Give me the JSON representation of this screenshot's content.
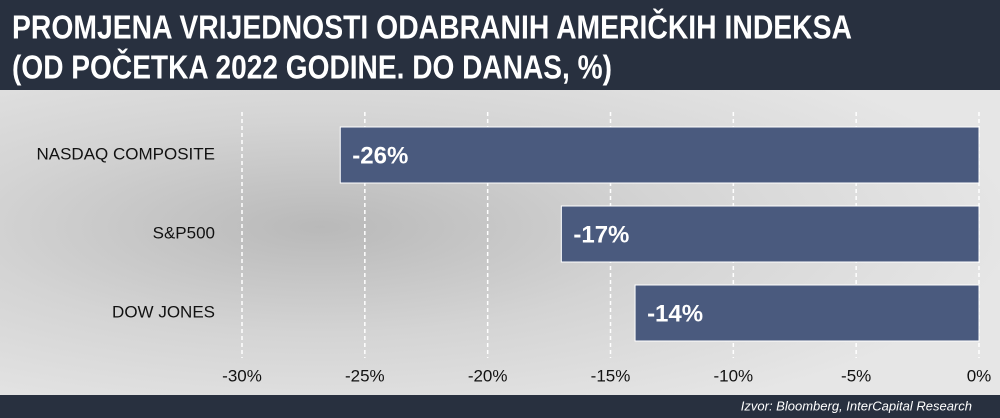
{
  "chart_data": {
    "type": "hbar",
    "title": "PROMJENA VRIJEDNOSTI ODABRANIH AMERIČKIH INDEKSA",
    "subtitle": "(OD POČETKA 2022 GODINE. DO DANAS, %)",
    "source": "Izvor: Bloomberg, InterCapital Research",
    "categories": [
      "NASDAQ COMPOSITE",
      "S&P500",
      "DOW JONES"
    ],
    "values": [
      -26,
      -17,
      -14
    ],
    "value_labels": [
      "-26%",
      "-17%",
      "-14%"
    ],
    "color": "#4a5a7e",
    "xlim": [
      -30,
      0
    ],
    "xticks": [
      {
        "value": -30,
        "label": "-30%"
      },
      {
        "value": -25,
        "label": "-25%"
      },
      {
        "value": -20,
        "label": "-20%"
      },
      {
        "value": -15,
        "label": "-15%"
      },
      {
        "value": -10,
        "label": "-10%"
      },
      {
        "value": -5,
        "label": "-5%"
      },
      {
        "value": 0,
        "label": "0%"
      }
    ],
    "grid": true
  }
}
